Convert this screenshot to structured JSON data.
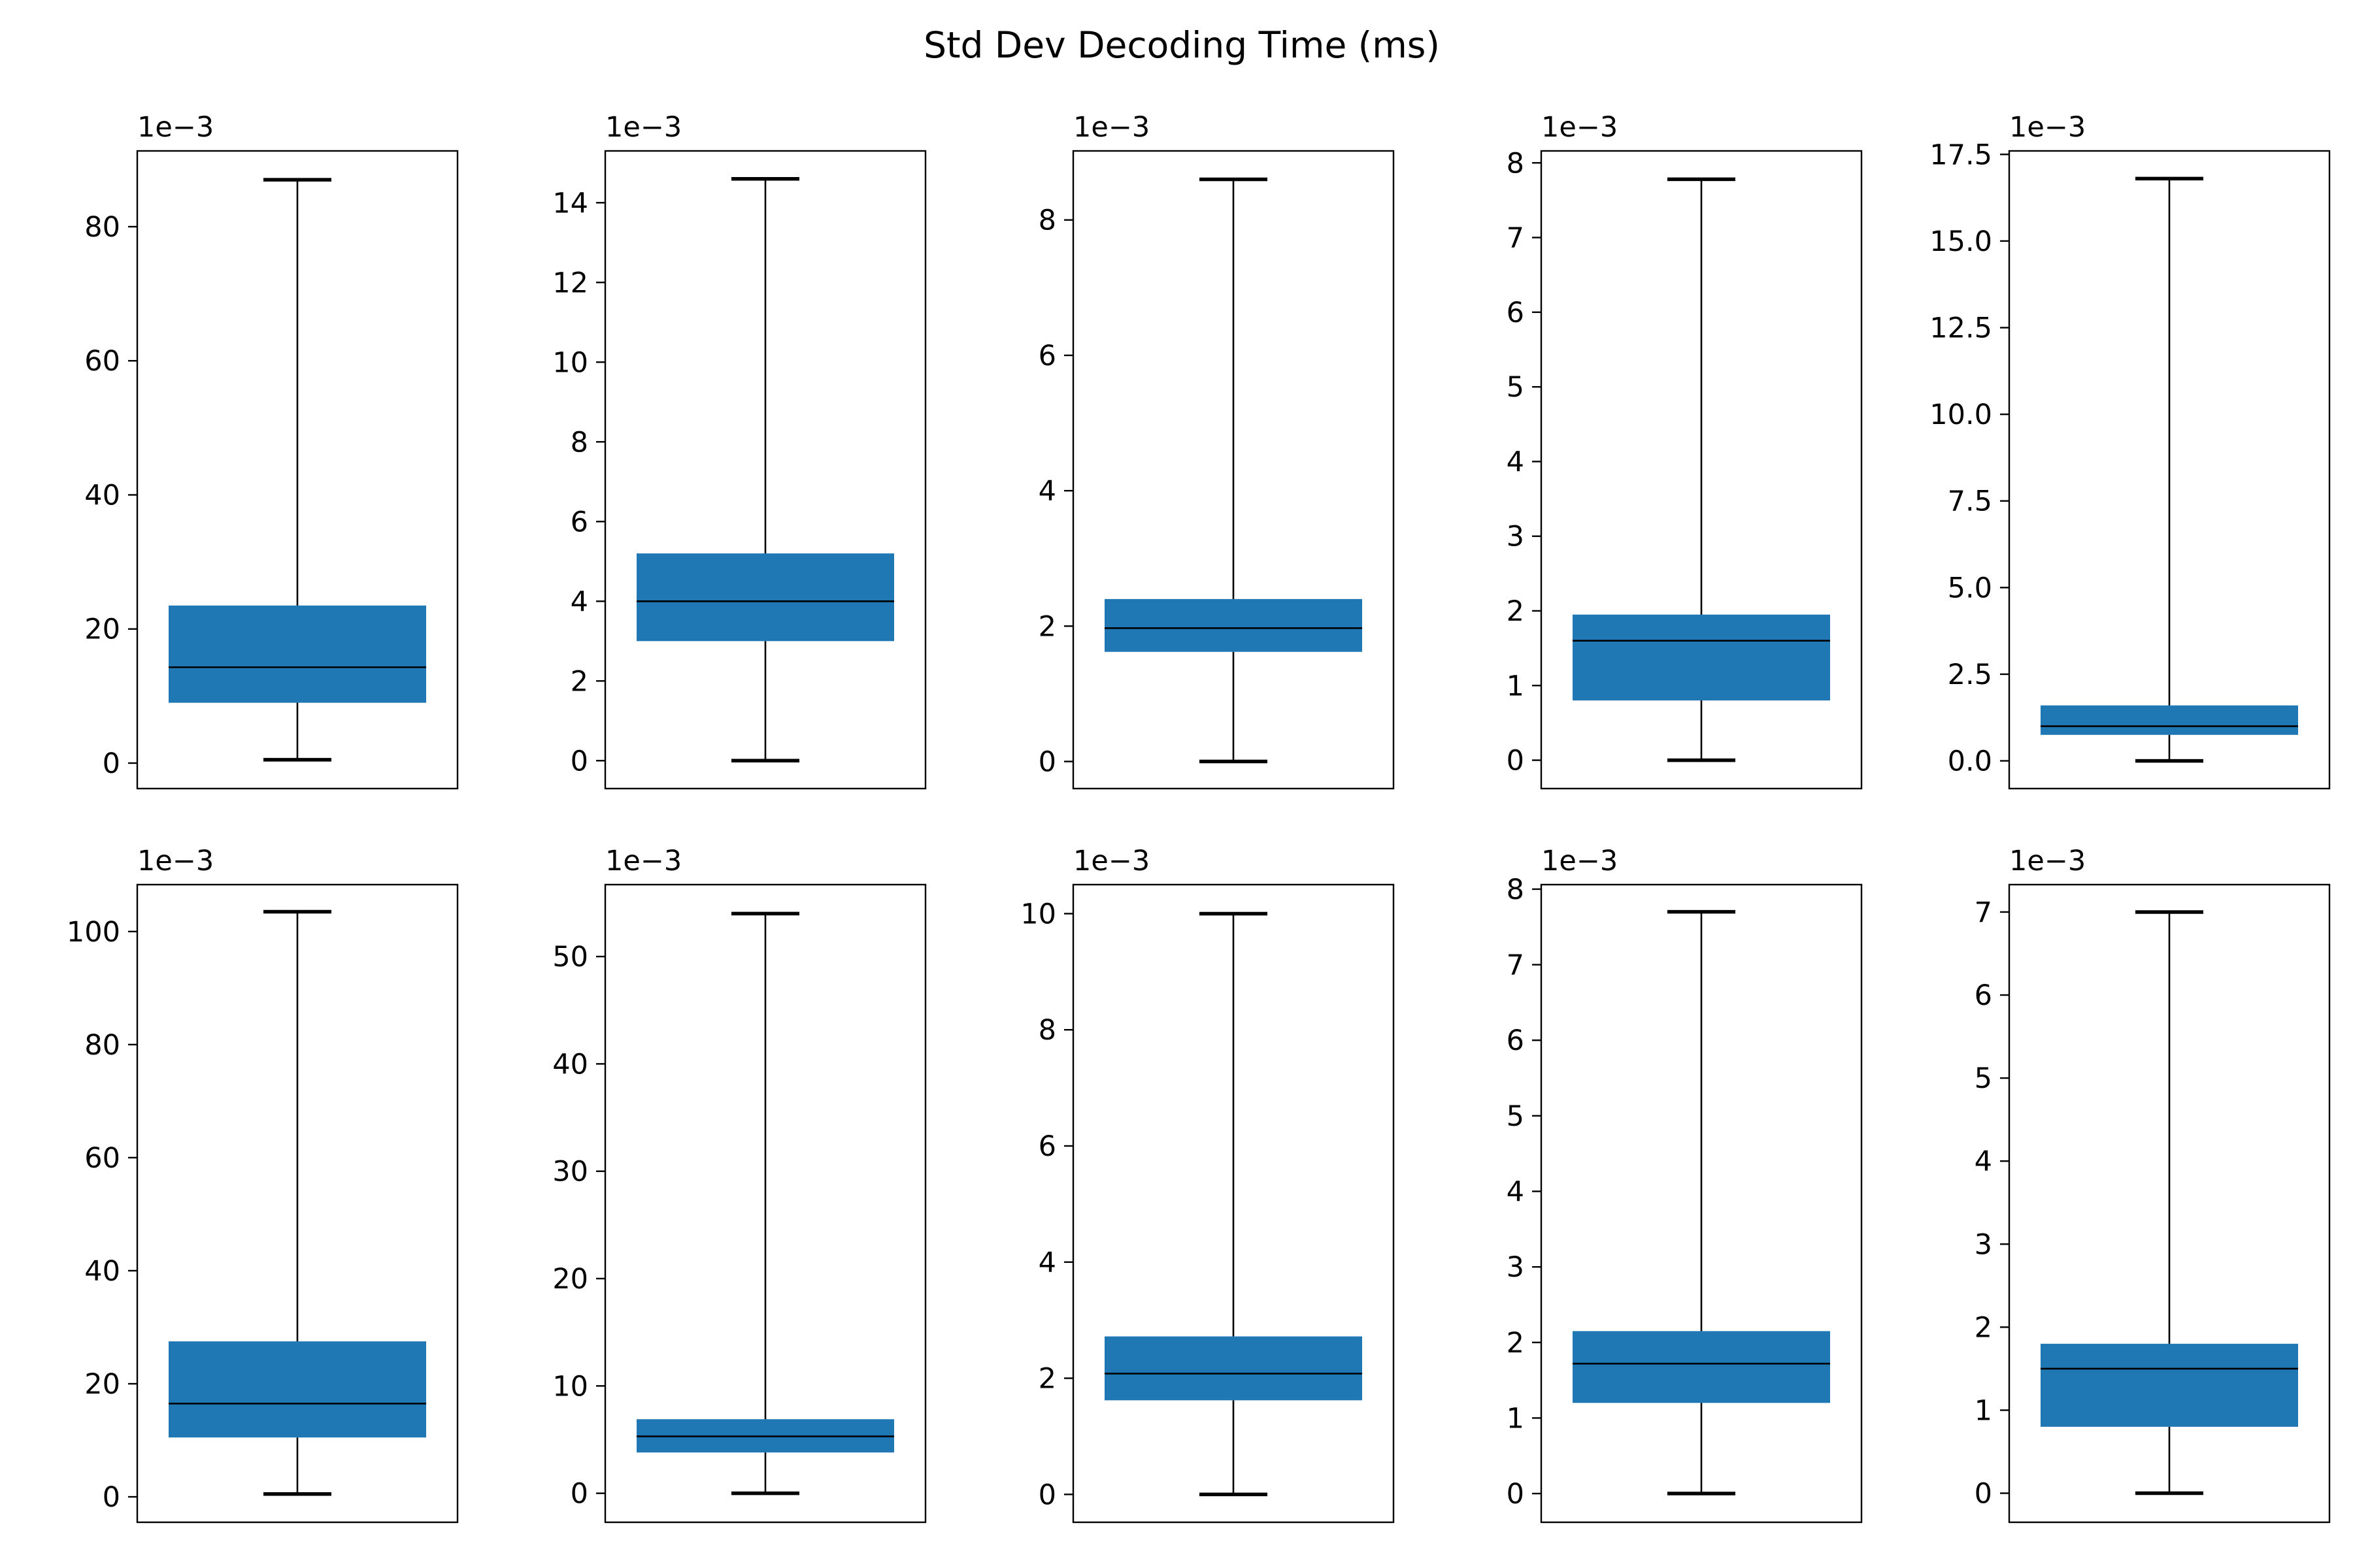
{
  "figure": {
    "title": "Std Dev Decoding Time (ms)",
    "box_color": "#1f77b4",
    "line_color": "#000000"
  },
  "chart_data": [
    {
      "type": "box",
      "row": 1,
      "col": 1,
      "offset_label": "1e−3",
      "whislo": 0.5,
      "q1": 9,
      "med": 14.3,
      "q3": 23.5,
      "whishi": 87,
      "ylim": [
        -3.8,
        91.3
      ],
      "yticks": [
        0,
        20,
        40,
        60,
        80
      ],
      "ytick_labels": [
        "0",
        "20",
        "40",
        "60",
        "80"
      ]
    },
    {
      "type": "box",
      "row": 1,
      "col": 2,
      "offset_label": "1e−3",
      "whislo": 0,
      "q1": 3,
      "med": 4,
      "q3": 5.2,
      "whishi": 14.6,
      "ylim": [
        -0.7,
        15.3
      ],
      "yticks": [
        0,
        2,
        4,
        6,
        8,
        10,
        12,
        14
      ],
      "ytick_labels": [
        "0",
        "2",
        "4",
        "6",
        "8",
        "10",
        "12",
        "14"
      ]
    },
    {
      "type": "box",
      "row": 1,
      "col": 3,
      "offset_label": "1e−3",
      "whislo": 0,
      "q1": 1.62,
      "med": 1.97,
      "q3": 2.4,
      "whishi": 8.6,
      "ylim": [
        -0.4,
        9.02
      ],
      "yticks": [
        0,
        2,
        4,
        6,
        8
      ],
      "ytick_labels": [
        "0",
        "2",
        "4",
        "6",
        "8"
      ]
    },
    {
      "type": "box",
      "row": 1,
      "col": 4,
      "offset_label": "1e−3",
      "whislo": 0,
      "q1": 0.8,
      "med": 1.6,
      "q3": 1.95,
      "whishi": 7.78,
      "ylim": [
        -0.38,
        8.16
      ],
      "yticks": [
        0,
        1,
        2,
        3,
        4,
        5,
        6,
        7,
        8
      ],
      "ytick_labels": [
        "0",
        "1",
        "2",
        "3",
        "4",
        "5",
        "6",
        "7",
        "8"
      ]
    },
    {
      "type": "box",
      "row": 1,
      "col": 5,
      "offset_label": "1e−3",
      "whislo": 0,
      "q1": 0.75,
      "med": 1,
      "q3": 1.6,
      "whishi": 16.8,
      "ylim": [
        -0.8,
        17.6
      ],
      "yticks": [
        0,
        2.5,
        5,
        7.5,
        10,
        12.5,
        15,
        17.5
      ],
      "ytick_labels": [
        "0.0",
        "2.5",
        "5.0",
        "7.5",
        "10.0",
        "12.5",
        "15.0",
        "17.5"
      ]
    },
    {
      "type": "box",
      "row": 2,
      "col": 1,
      "offset_label": "1e−3",
      "whislo": 0.5,
      "q1": 10.5,
      "med": 16.5,
      "q3": 27.5,
      "whishi": 103.5,
      "ylim": [
        -4.5,
        108.3
      ],
      "yticks": [
        0,
        20,
        40,
        60,
        80,
        100
      ],
      "ytick_labels": [
        "0",
        "20",
        "40",
        "60",
        "80",
        "100"
      ]
    },
    {
      "type": "box",
      "row": 2,
      "col": 2,
      "offset_label": "1e−3",
      "whislo": 0,
      "q1": 3.8,
      "med": 5.3,
      "q3": 6.9,
      "whishi": 54,
      "ylim": [
        -2.7,
        56.7
      ],
      "yticks": [
        0,
        10,
        20,
        30,
        40,
        50
      ],
      "ytick_labels": [
        "0",
        "10",
        "20",
        "30",
        "40",
        "50"
      ]
    },
    {
      "type": "box",
      "row": 2,
      "col": 3,
      "offset_label": "1e−3",
      "whislo": 0,
      "q1": 1.62,
      "med": 2.08,
      "q3": 2.72,
      "whishi": 10,
      "ylim": [
        -0.48,
        10.5
      ],
      "yticks": [
        0,
        2,
        4,
        6,
        8,
        10
      ],
      "ytick_labels": [
        "0",
        "2",
        "4",
        "6",
        "8",
        "10"
      ]
    },
    {
      "type": "box",
      "row": 2,
      "col": 4,
      "offset_label": "1e−3",
      "whislo": 0,
      "q1": 1.2,
      "med": 1.72,
      "q3": 2.15,
      "whishi": 7.7,
      "ylim": [
        -0.38,
        8.06
      ],
      "yticks": [
        0,
        1,
        2,
        3,
        4,
        5,
        6,
        7,
        8
      ],
      "ytick_labels": [
        "0",
        "1",
        "2",
        "3",
        "4",
        "5",
        "6",
        "7",
        "8"
      ]
    },
    {
      "type": "box",
      "row": 2,
      "col": 5,
      "offset_label": "1e−3",
      "whislo": 0,
      "q1": 0.8,
      "med": 1.5,
      "q3": 1.8,
      "whishi": 7,
      "ylim": [
        -0.35,
        7.33
      ],
      "yticks": [
        0,
        1,
        2,
        3,
        4,
        5,
        6,
        7
      ],
      "ytick_labels": [
        "0",
        "1",
        "2",
        "3",
        "4",
        "5",
        "6",
        "7"
      ]
    }
  ]
}
